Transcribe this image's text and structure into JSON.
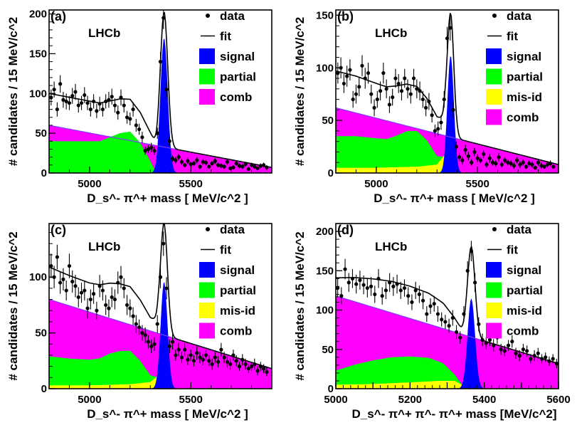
{
  "chart_data": [
    {
      "type": "area",
      "panel": "(a)",
      "experiment": "LHCb",
      "xlabel": "D_s^- π^+ mass [ MeV/c^2 ]",
      "ylabel": "# candidates / 15 MeV/c^2",
      "xlim": [
        4800,
        5900
      ],
      "ylim": [
        0,
        205
      ],
      "xticks": [
        5000,
        5500
      ],
      "yticks": [
        0,
        50,
        100,
        150,
        200
      ],
      "legend": [
        "data",
        "fit",
        "signal",
        "partial",
        "comb"
      ],
      "legend_position": "top-right",
      "colors": {
        "signal": "#0000ff",
        "partial": "#00ff00",
        "comb": "#ff00ff",
        "fit": "#000000",
        "data": "#000000"
      },
      "peak": {
        "mean": 5368,
        "sigma": 18,
        "amplitude": 170
      },
      "partial": {
        "x": [
          4800,
          4900,
          5000,
          5050,
          5100,
          5150,
          5200,
          5250,
          5300,
          5330
        ],
        "y": [
          40,
          40,
          40,
          40,
          45,
          50,
          52,
          38,
          15,
          0
        ]
      },
      "comb": {
        "x": [
          4800,
          5900
        ],
        "y": [
          60,
          7
        ]
      },
      "data_points": {
        "x": [
          4810,
          4825,
          4840,
          4855,
          4870,
          4885,
          4900,
          4915,
          4930,
          4945,
          4960,
          4975,
          4990,
          5005,
          5020,
          5035,
          5050,
          5065,
          5080,
          5095,
          5110,
          5125,
          5140,
          5155,
          5170,
          5185,
          5200,
          5215,
          5230,
          5245,
          5260,
          5275,
          5290,
          5305,
          5320,
          5335,
          5350,
          5365,
          5380,
          5395,
          5410,
          5425,
          5440,
          5455,
          5470,
          5485,
          5500,
          5515,
          5530,
          5545,
          5560,
          5575,
          5590,
          5605,
          5620,
          5635,
          5650,
          5665,
          5680,
          5695,
          5710,
          5725,
          5740,
          5755,
          5770,
          5785,
          5800,
          5815,
          5830,
          5845,
          5860,
          5875
        ],
        "y": [
          95,
          105,
          80,
          112,
          92,
          90,
          88,
          97,
          102,
          85,
          88,
          98,
          88,
          80,
          90,
          78,
          87,
          80,
          90,
          92,
          96,
          85,
          76,
          95,
          85,
          70,
          68,
          80,
          60,
          55,
          45,
          28,
          30,
          32,
          28,
          50,
          140,
          195,
          105,
          40,
          18,
          16,
          20,
          14,
          10,
          15,
          11,
          12,
          16,
          8,
          14,
          13,
          8,
          12,
          15,
          10,
          9,
          8,
          14,
          6,
          7,
          12,
          9,
          8,
          11,
          5,
          10,
          8,
          6,
          9,
          10,
          7
        ],
        "err": [
          10,
          10,
          9,
          11,
          10,
          10,
          9,
          10,
          10,
          9,
          9,
          10,
          9,
          9,
          9,
          9,
          9,
          9,
          9,
          10,
          10,
          9,
          9,
          10,
          9,
          8,
          8,
          9,
          8,
          7,
          7,
          5,
          5,
          6,
          5,
          7,
          12,
          14,
          10,
          6,
          4,
          4,
          4,
          4,
          3,
          4,
          3,
          3,
          4,
          3,
          4,
          4,
          3,
          3,
          4,
          3,
          3,
          3,
          4,
          2,
          3,
          3,
          3,
          3,
          3,
          2,
          3,
          3,
          2,
          3,
          3,
          3
        ]
      }
    },
    {
      "type": "area",
      "panel": "(b)",
      "experiment": "LHCb",
      "xlabel": "D_s^- π^+ mass [ MeV/c^2 ]",
      "ylabel": "# candidates / 15 MeV/c^2",
      "xlim": [
        4800,
        5900
      ],
      "ylim": [
        0,
        155
      ],
      "xticks": [
        5000,
        5500
      ],
      "yticks": [
        0,
        50,
        100,
        150
      ],
      "legend": [
        "data",
        "fit",
        "signal",
        "partial",
        "mis-id",
        "comb"
      ],
      "legend_position": "top-right",
      "colors": {
        "signal": "#0000ff",
        "partial": "#00ff00",
        "misid": "#ffff00",
        "comb": "#ff00ff",
        "fit": "#000000",
        "data": "#000000"
      },
      "peak": {
        "mean": 5367,
        "sigma": 16,
        "amplitude": 112
      },
      "misid": {
        "x": [
          4800,
          5000,
          5200,
          5300,
          5340,
          5360,
          5390
        ],
        "y": [
          5,
          5,
          6,
          8,
          18,
          8,
          0
        ]
      },
      "partial": {
        "x": [
          4800,
          4900,
          5000,
          5050,
          5100,
          5150,
          5200,
          5250,
          5300,
          5330
        ],
        "y": [
          30,
          30,
          28,
          27,
          30,
          34,
          34,
          24,
          8,
          0
        ]
      },
      "comb": {
        "x": [
          4800,
          5900
        ],
        "y": [
          62,
          8
        ]
      },
      "data_points": {
        "x": [
          4810,
          4825,
          4840,
          4855,
          4870,
          4885,
          4900,
          4915,
          4930,
          4945,
          4960,
          4975,
          4990,
          5005,
          5020,
          5035,
          5050,
          5065,
          5080,
          5095,
          5110,
          5125,
          5140,
          5155,
          5170,
          5185,
          5200,
          5215,
          5230,
          5245,
          5260,
          5275,
          5290,
          5305,
          5320,
          5335,
          5350,
          5365,
          5380,
          5395,
          5410,
          5425,
          5440,
          5455,
          5470,
          5485,
          5500,
          5515,
          5530,
          5545,
          5560,
          5575,
          5590,
          5605,
          5620,
          5635,
          5650,
          5665,
          5680,
          5695,
          5710,
          5725,
          5740,
          5755,
          5770,
          5785,
          5800,
          5815,
          5830,
          5845,
          5860,
          5875
        ],
        "y": [
          95,
          100,
          85,
          92,
          98,
          70,
          75,
          82,
          102,
          90,
          95,
          75,
          62,
          70,
          78,
          95,
          80,
          65,
          72,
          90,
          85,
          78,
          90,
          80,
          75,
          90,
          80,
          78,
          70,
          62,
          68,
          55,
          40,
          42,
          48,
          70,
          128,
          138,
          60,
          25,
          15,
          12,
          22,
          16,
          10,
          20,
          14,
          12,
          18,
          8,
          14,
          10,
          9,
          15,
          8,
          12,
          10,
          9,
          7,
          12,
          8,
          10,
          6,
          9,
          8,
          5,
          10,
          7,
          6,
          8,
          9,
          6
        ],
        "err": [
          10,
          10,
          9,
          10,
          10,
          8,
          9,
          9,
          10,
          10,
          10,
          9,
          8,
          8,
          9,
          10,
          9,
          8,
          8,
          9,
          9,
          9,
          9,
          9,
          9,
          9,
          9,
          9,
          8,
          8,
          8,
          7,
          6,
          7,
          7,
          8,
          11,
          12,
          8,
          5,
          4,
          4,
          5,
          4,
          3,
          4,
          4,
          3,
          4,
          3,
          4,
          3,
          3,
          4,
          3,
          3,
          3,
          3,
          3,
          3,
          3,
          3,
          2,
          3,
          3,
          2,
          3,
          3,
          2,
          3,
          3,
          2
        ]
      }
    },
    {
      "type": "area",
      "panel": "(c)",
      "experiment": "LHCb",
      "xlabel": "D_s^- π^+ mass [ MeV/c^2 ]",
      "ylabel": "# candidates / 15 MeV/c^2",
      "xlim": [
        4800,
        5900
      ],
      "ylim": [
        0,
        148
      ],
      "xticks": [
        5000,
        5500
      ],
      "yticks": [
        0,
        50,
        100
      ],
      "legend": [
        "data",
        "fit",
        "signal",
        "partial",
        "mis-id",
        "comb"
      ],
      "legend_position": "top-right",
      "colors": {
        "signal": "#0000ff",
        "partial": "#00ff00",
        "misid": "#ffff00",
        "comb": "#ff00ff",
        "fit": "#000000",
        "data": "#000000"
      },
      "peak": {
        "mean": 5368,
        "sigma": 17,
        "amplitude": 96
      },
      "misid": {
        "x": [
          4800,
          5000,
          5200,
          5300,
          5340,
          5360,
          5390
        ],
        "y": [
          3,
          3,
          4,
          6,
          12,
          6,
          0
        ]
      },
      "partial": {
        "x": [
          4800,
          4900,
          5000,
          5050,
          5100,
          5150,
          5200,
          5250,
          5300,
          5330
        ],
        "y": [
          26,
          24,
          23,
          24,
          28,
          30,
          30,
          20,
          6,
          0
        ]
      },
      "comb": {
        "x": [
          4800,
          5900
        ],
        "y": [
          80,
          18
        ]
      },
      "data_points": {
        "x": [
          4810,
          4825,
          4840,
          4855,
          4870,
          4885,
          4900,
          4915,
          4930,
          4945,
          4960,
          4975,
          4990,
          5005,
          5020,
          5035,
          5050,
          5065,
          5080,
          5095,
          5110,
          5125,
          5140,
          5155,
          5170,
          5185,
          5200,
          5215,
          5230,
          5245,
          5260,
          5275,
          5290,
          5305,
          5320,
          5335,
          5350,
          5365,
          5380,
          5395,
          5410,
          5425,
          5440,
          5455,
          5470,
          5485,
          5500,
          5515,
          5530,
          5545,
          5560,
          5575,
          5590,
          5605,
          5620,
          5635,
          5650,
          5665,
          5680,
          5695,
          5710,
          5725,
          5740,
          5755,
          5770,
          5785,
          5800,
          5815,
          5830,
          5845,
          5860,
          5875
        ],
        "y": [
          110,
          100,
          118,
          95,
          98,
          88,
          110,
          96,
          92,
          82,
          86,
          88,
          72,
          80,
          85,
          70,
          92,
          88,
          75,
          72,
          82,
          80,
          95,
          100,
          90,
          75,
          72,
          65,
          58,
          55,
          50,
          48,
          42,
          38,
          40,
          58,
          100,
          130,
          90,
          38,
          42,
          30,
          35,
          28,
          35,
          26,
          30,
          25,
          32,
          28,
          26,
          30,
          25,
          22,
          28,
          24,
          35,
          28,
          24,
          22,
          30,
          25,
          20,
          26,
          22,
          18,
          20,
          22,
          16,
          20,
          18,
          15
        ],
        "err": [
          11,
          10,
          11,
          10,
          10,
          9,
          11,
          10,
          10,
          9,
          9,
          9,
          9,
          9,
          9,
          8,
          10,
          9,
          9,
          8,
          9,
          9,
          10,
          10,
          9,
          9,
          8,
          8,
          8,
          7,
          7,
          7,
          6,
          6,
          6,
          8,
          10,
          11,
          10,
          6,
          7,
          5,
          6,
          5,
          6,
          5,
          5,
          5,
          6,
          5,
          5,
          5,
          5,
          5,
          5,
          5,
          6,
          5,
          5,
          5,
          5,
          5,
          4,
          5,
          5,
          4,
          4,
          5,
          4,
          4,
          4,
          4
        ]
      }
    },
    {
      "type": "area",
      "panel": "(d)",
      "experiment": "LHCb",
      "xlabel": "D_s^- π^+ π^- π^+ mass [MeV/c^2]",
      "ylabel": "# candidates / 15 MeV/c^2",
      "xlim": [
        5000,
        5600
      ],
      "ylim": [
        0,
        210
      ],
      "xticks": [
        5000,
        5100,
        5200,
        5300,
        5400,
        5500,
        5600
      ],
      "xticklabels": [
        "5000",
        "",
        "5200",
        "",
        "5400",
        "",
        "5600"
      ],
      "yticks": [
        0,
        50,
        100,
        150,
        200
      ],
      "legend": [
        "data",
        "fit",
        "signal",
        "partial",
        "mis-id",
        "comb"
      ],
      "legend_position": "top-right",
      "colors": {
        "signal": "#0000ff",
        "partial": "#00ff00",
        "misid": "#ffff00",
        "comb": "#ff00ff",
        "fit": "#000000",
        "data": "#000000"
      },
      "peak": {
        "mean": 5365,
        "sigma": 10,
        "amplitude": 115
      },
      "misid": {
        "x": [
          5000,
          5100,
          5200,
          5280,
          5320,
          5340,
          5360
        ],
        "y": [
          5,
          6,
          8,
          10,
          10,
          5,
          0
        ]
      },
      "partial": {
        "x": [
          5000,
          5050,
          5100,
          5150,
          5200,
          5250,
          5290,
          5320,
          5340
        ],
        "y": [
          18,
          25,
          30,
          33,
          33,
          30,
          22,
          8,
          0
        ]
      },
      "comb": {
        "x": [
          5000,
          5600
        ],
        "y": [
          118,
          32
        ]
      },
      "data_points": {
        "x": [
          5005,
          5015,
          5025,
          5035,
          5045,
          5055,
          5065,
          5075,
          5085,
          5095,
          5105,
          5115,
          5125,
          5135,
          5145,
          5155,
          5165,
          5175,
          5185,
          5195,
          5205,
          5215,
          5225,
          5235,
          5245,
          5255,
          5265,
          5275,
          5285,
          5295,
          5305,
          5315,
          5325,
          5335,
          5345,
          5355,
          5365,
          5375,
          5385,
          5395,
          5405,
          5415,
          5425,
          5435,
          5445,
          5455,
          5465,
          5475,
          5485,
          5495,
          5505,
          5515,
          5525,
          5535,
          5545,
          5555,
          5565,
          5575,
          5585,
          5595
        ],
        "y": [
          128,
          118,
          152,
          135,
          140,
          133,
          138,
          132,
          128,
          130,
          120,
          140,
          118,
          125,
          135,
          130,
          133,
          125,
          128,
          118,
          110,
          125,
          120,
          112,
          95,
          105,
          108,
          95,
          88,
          85,
          80,
          90,
          72,
          65,
          95,
          150,
          175,
          135,
          82,
          62,
          58,
          62,
          55,
          65,
          50,
          48,
          55,
          60,
          45,
          42,
          50,
          48,
          38,
          42,
          45,
          38,
          40,
          35,
          38,
          32
        ],
        "err": [
          12,
          11,
          13,
          12,
          12,
          12,
          12,
          12,
          12,
          12,
          11,
          12,
          11,
          11,
          12,
          12,
          12,
          11,
          11,
          11,
          10,
          11,
          11,
          11,
          10,
          10,
          10,
          10,
          9,
          9,
          9,
          10,
          9,
          8,
          10,
          12,
          13,
          12,
          9,
          8,
          8,
          8,
          8,
          8,
          7,
          7,
          7,
          8,
          7,
          7,
          7,
          7,
          6,
          7,
          7,
          6,
          6,
          6,
          6,
          6
        ]
      }
    }
  ]
}
